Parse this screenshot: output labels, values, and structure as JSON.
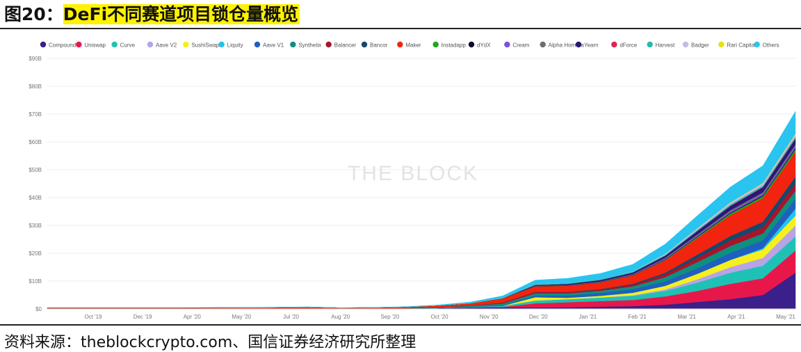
{
  "figure": {
    "title_prefix": "图20：",
    "title_main": "DeFi不同赛道项目锁仓量概览",
    "watermark": "THE BLOCK",
    "source": "资料来源：theblockcrypto.com、国信证券经济研究所整理"
  },
  "chart_data": {
    "type": "area",
    "stacked": true,
    "legend_position": "top",
    "grid": true,
    "x": [
      "2019-06",
      "2019-07",
      "2019-08",
      "2019-09",
      "2019-10",
      "2019-11",
      "2019-12",
      "2020-01",
      "2020-02",
      "2020-03",
      "2020-04",
      "2020-05",
      "2020-06",
      "2020-07",
      "2020-08",
      "2020-09",
      "2020-10",
      "2020-11",
      "2020-12",
      "2021-01",
      "2021-02",
      "2021-03",
      "2021-04",
      "2021-05"
    ],
    "x_tick_labels": [
      "Oct '19",
      "Dec '19",
      "Apr '20",
      "May '20",
      "Jul '20",
      "Aug '20",
      "Sep '20",
      "Oct '20",
      "Nov '20",
      "Dec '20",
      "Jan '21",
      "Feb '21",
      "Mar '21",
      "Apr '21",
      "May '21"
    ],
    "y_tick_labels": [
      "$0",
      "$10B",
      "$20B",
      "$30B",
      "$40B",
      "$50B",
      "$60B",
      "$70B",
      "$80B",
      "$90B"
    ],
    "ylim": [
      0,
      90
    ],
    "series": [
      {
        "name": "Compound",
        "color": "#3b1f8a",
        "values": [
          0.1,
          0.1,
          0.1,
          0.1,
          0.1,
          0.1,
          0.1,
          0.1,
          0.1,
          0.05,
          0.05,
          0.1,
          0.3,
          0.5,
          0.6,
          0.5,
          0.6,
          0.8,
          1.0,
          1.5,
          2.5,
          3.5,
          5,
          13
        ]
      },
      {
        "name": "Uniswap",
        "color": "#e8174a",
        "values": [
          0,
          0,
          0,
          0,
          0,
          0,
          0,
          0,
          0,
          0,
          0,
          0,
          0,
          0,
          0.1,
          1.5,
          1.8,
          2.0,
          2.2,
          3,
          4,
          5.5,
          6,
          8
        ]
      },
      {
        "name": "Curve",
        "color": "#1ec2b5",
        "values": [
          0,
          0,
          0,
          0,
          0,
          0,
          0,
          0,
          0,
          0,
          0,
          0,
          0,
          0.1,
          0.4,
          1.0,
          1.1,
          1.3,
          1.5,
          2,
          3,
          4,
          4.5,
          5
        ]
      },
      {
        "name": "Aave V2",
        "color": "#b6a3e8",
        "values": [
          0,
          0,
          0,
          0,
          0,
          0,
          0,
          0,
          0,
          0,
          0,
          0,
          0,
          0,
          0,
          0,
          0,
          0,
          0.2,
          0.5,
          1.2,
          2,
          2.8,
          4
        ]
      },
      {
        "name": "SushiSwap",
        "color": "#f7ef1c",
        "values": [
          0,
          0,
          0,
          0,
          0,
          0,
          0,
          0,
          0,
          0,
          0,
          0,
          0,
          0,
          0,
          1.2,
          0.5,
          0.6,
          0.9,
          1.3,
          2,
          2.6,
          3,
          3.5
        ]
      },
      {
        "name": "Liquity",
        "color": "#22c3f0",
        "values": [
          0,
          0,
          0,
          0,
          0,
          0,
          0,
          0,
          0,
          0,
          0,
          0,
          0,
          0,
          0,
          0,
          0,
          0,
          0,
          0,
          0,
          0,
          0.5,
          2.5
        ]
      },
      {
        "name": "Aave V1",
        "color": "#1f5fbf",
        "values": [
          0,
          0,
          0,
          0,
          0,
          0,
          0,
          0,
          0,
          0,
          0.01,
          0.02,
          0.05,
          0.1,
          0.2,
          0.6,
          0.8,
          1.0,
          1.3,
          1.6,
          2,
          2.5,
          2.8,
          3.5
        ]
      },
      {
        "name": "Synthetix",
        "color": "#0f8f80",
        "values": [
          0.02,
          0.02,
          0.02,
          0.02,
          0.02,
          0.03,
          0.03,
          0.04,
          0.05,
          0.03,
          0.05,
          0.1,
          0.2,
          0.4,
          0.6,
          0.8,
          0.8,
          0.8,
          1.0,
          1.5,
          2.2,
          2.5,
          2.5,
          3
        ]
      },
      {
        "name": "Balancer",
        "color": "#a8142a",
        "values": [
          0,
          0,
          0,
          0,
          0,
          0,
          0,
          0,
          0,
          0,
          0,
          0,
          0,
          0.1,
          0.3,
          0.4,
          0.4,
          0.4,
          0.6,
          1,
          1.5,
          2,
          2.2,
          2.5
        ]
      },
      {
        "name": "Bancor",
        "color": "#14496e",
        "values": [
          0,
          0,
          0,
          0,
          0,
          0,
          0,
          0,
          0,
          0,
          0,
          0,
          0,
          0,
          0.05,
          0.1,
          0.1,
          0.2,
          0.3,
          0.6,
          1.2,
          1.6,
          2,
          2.5
        ]
      },
      {
        "name": "Maker",
        "color": "#f2230f",
        "values": [
          0.3,
          0.3,
          0.3,
          0.3,
          0.3,
          0.3,
          0.35,
          0.4,
          0.5,
          0.3,
          0.35,
          0.45,
          0.6,
          0.8,
          1.5,
          2.0,
          2.2,
          2.4,
          3,
          4.5,
          6,
          7.5,
          8.5,
          9
        ]
      },
      {
        "name": "Instadapp",
        "color": "#22a61a",
        "values": [
          0,
          0,
          0,
          0,
          0,
          0,
          0,
          0,
          0,
          0,
          0,
          0,
          0,
          0,
          0,
          0.05,
          0.05,
          0.1,
          0.1,
          0.2,
          0.4,
          0.6,
          0.7,
          0.9
        ]
      },
      {
        "name": "dYdX",
        "color": "#0b0b2e",
        "values": [
          0.01,
          0.01,
          0.01,
          0.01,
          0.01,
          0.01,
          0.01,
          0.01,
          0.02,
          0.02,
          0.02,
          0.03,
          0.05,
          0.05,
          0.06,
          0.07,
          0.07,
          0.08,
          0.1,
          0.15,
          0.2,
          0.25,
          0.3,
          0.4
        ]
      },
      {
        "name": "Cream",
        "color": "#7b52e0",
        "values": [
          0,
          0,
          0,
          0,
          0,
          0,
          0,
          0,
          0,
          0,
          0,
          0,
          0,
          0,
          0,
          0.1,
          0.15,
          0.15,
          0.2,
          0.3,
          0.4,
          0.5,
          0.6,
          0.7
        ]
      },
      {
        "name": "Alpha Homora",
        "color": "#6e6e6e",
        "values": [
          0,
          0,
          0,
          0,
          0,
          0,
          0,
          0,
          0,
          0,
          0,
          0,
          0,
          0,
          0,
          0,
          0.02,
          0.05,
          0.1,
          0.2,
          0.3,
          0.4,
          0.5,
          0.6
        ]
      },
      {
        "name": "Yearn",
        "color": "#2a1775",
        "values": [
          0,
          0,
          0,
          0,
          0,
          0,
          0,
          0,
          0,
          0,
          0,
          0,
          0,
          0,
          0.05,
          0.3,
          0.4,
          0.5,
          0.6,
          0.8,
          1.2,
          1.5,
          1.8,
          2
        ]
      },
      {
        "name": "dForce",
        "color": "#e0244a",
        "values": [
          0,
          0,
          0,
          0,
          0,
          0,
          0,
          0,
          0,
          0,
          0,
          0,
          0,
          0,
          0,
          0,
          0,
          0,
          0,
          0,
          0.05,
          0.1,
          0.15,
          0.2
        ]
      },
      {
        "name": "Harvest",
        "color": "#2ab8a8",
        "values": [
          0,
          0,
          0,
          0,
          0,
          0,
          0,
          0,
          0,
          0,
          0,
          0,
          0,
          0,
          0,
          0.2,
          0.3,
          0.35,
          0.3,
          0.3,
          0.4,
          0.5,
          0.5,
          0.6
        ]
      },
      {
        "name": "Badger",
        "color": "#c9b8ea",
        "values": [
          0,
          0,
          0,
          0,
          0,
          0,
          0,
          0,
          0,
          0,
          0,
          0,
          0,
          0,
          0,
          0,
          0,
          0,
          0.1,
          0.3,
          0.5,
          0.6,
          0.7,
          0.8
        ]
      },
      {
        "name": "Rari Capital",
        "color": "#ecdf1a",
        "values": [
          0,
          0,
          0,
          0,
          0,
          0,
          0,
          0,
          0,
          0,
          0,
          0,
          0,
          0,
          0,
          0,
          0,
          0,
          0,
          0.05,
          0.1,
          0.15,
          0.2,
          0.3
        ]
      },
      {
        "name": "Others",
        "color": "#29c4ef",
        "values": [
          0.05,
          0.05,
          0.05,
          0.05,
          0.05,
          0.05,
          0.05,
          0.06,
          0.08,
          0.05,
          0.06,
          0.1,
          0.2,
          0.4,
          0.8,
          1.5,
          1.7,
          2.0,
          2.5,
          3.5,
          4.5,
          5.5,
          6.2,
          8
        ]
      }
    ]
  }
}
